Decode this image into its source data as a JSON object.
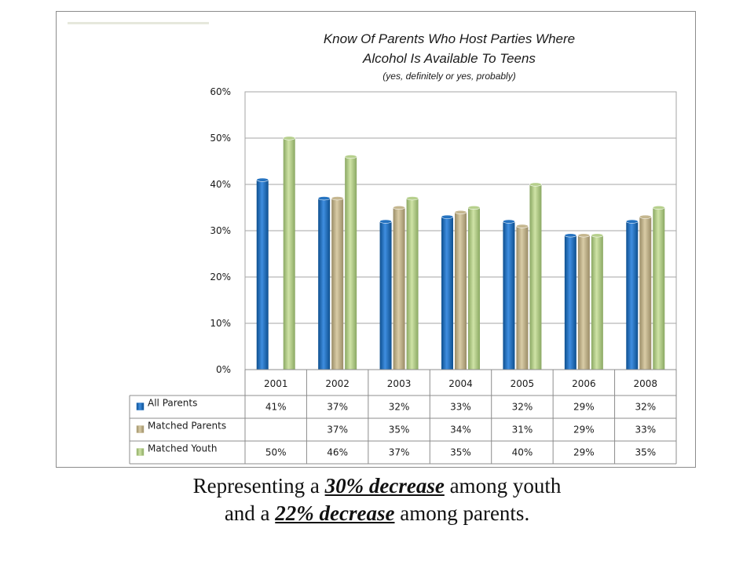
{
  "chart_data": {
    "type": "bar",
    "title": [
      "Know Of Parents Who Host Parties Where",
      "Alcohol Is Available To Teens"
    ],
    "subtitle": "(yes, definitely or yes, probably)",
    "categories": [
      "2001",
      "2002",
      "2003",
      "2004",
      "2005",
      "2006",
      "2008"
    ],
    "series": [
      {
        "name": "All Parents",
        "values": [
          41,
          37,
          32,
          33,
          32,
          29,
          32
        ],
        "color": "#1f6fbf",
        "labels": [
          "41%",
          "37%",
          "32%",
          "33%",
          "32%",
          "29%",
          "32%"
        ]
      },
      {
        "name": "Matched Parents",
        "values": [
          null,
          37,
          35,
          34,
          31,
          29,
          33
        ],
        "color": "#c4b58c",
        "labels": [
          "",
          "37%",
          "35%",
          "34%",
          "31%",
          "29%",
          "33%"
        ]
      },
      {
        "name": "Matched Youth",
        "values": [
          50,
          46,
          37,
          35,
          40,
          29,
          35
        ],
        "color": "#b5cf8a",
        "labels": [
          "50%",
          "46%",
          "37%",
          "35%",
          "40%",
          "29%",
          "35%"
        ]
      }
    ],
    "ylim": [
      0,
      60
    ],
    "yticks": [
      "0%",
      "10%",
      "20%",
      "30%",
      "40%",
      "50%",
      "60%"
    ],
    "grid": true,
    "legend": "data-table-below"
  },
  "footer": {
    "line1": {
      "pre": "Representing a ",
      "em": "30% decrease",
      "post": " among youth"
    },
    "line2": {
      "pre": "and a ",
      "em": "22% decrease",
      "post": " among parents."
    }
  }
}
